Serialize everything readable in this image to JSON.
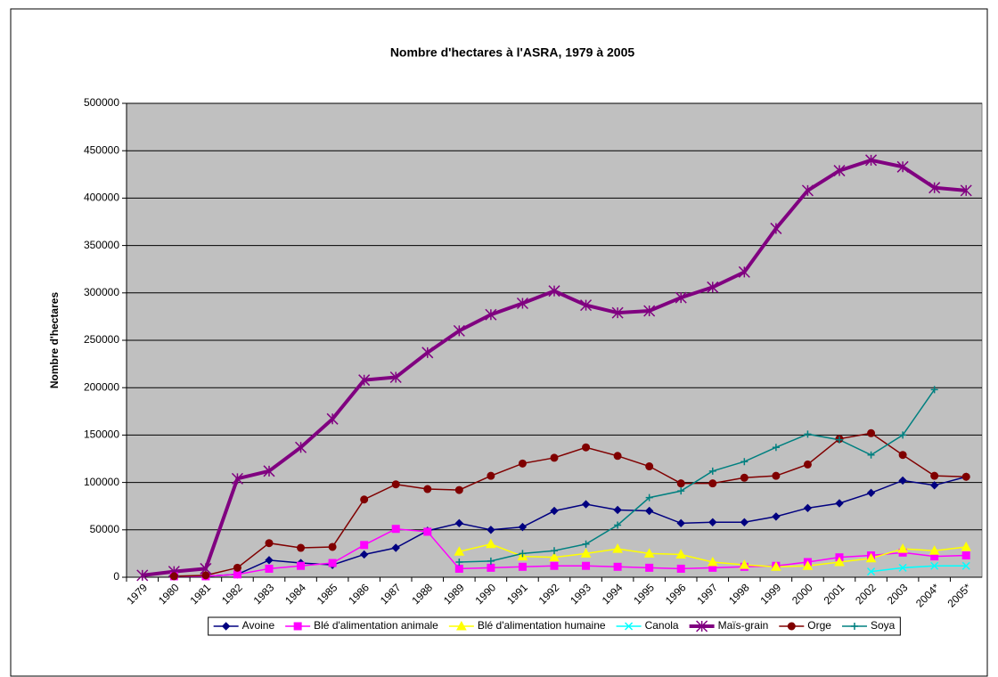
{
  "chart_data": {
    "type": "line",
    "title": "Nombre d'hectares à l'ASRA, 1979 à 2005",
    "ylabel": "Nombre d'hectares",
    "categories": [
      "1979",
      "1980",
      "1981",
      "1982",
      "1983",
      "1984",
      "1985",
      "1986",
      "1987",
      "1988",
      "1989",
      "1990",
      "1991",
      "1992",
      "1993",
      "1994",
      "1995",
      "1996",
      "1997",
      "1998",
      "1999",
      "2000",
      "2001",
      "2002",
      "2003",
      "2004*",
      "2005*"
    ],
    "ylim": [
      0,
      500000
    ],
    "yticks": [
      0,
      50000,
      100000,
      150000,
      200000,
      250000,
      300000,
      350000,
      400000,
      450000,
      500000
    ],
    "grid": true,
    "legend": "bottom",
    "series": [
      {
        "name": "Avoine",
        "color": "#000080",
        "marker": "diamond",
        "values": [
          null,
          1000,
          1000,
          3000,
          18000,
          15000,
          13000,
          24000,
          31000,
          49000,
          57000,
          50000,
          53000,
          70000,
          77000,
          71000,
          70000,
          57000,
          58000,
          58000,
          64000,
          73000,
          78000,
          89000,
          102000,
          97000,
          106000
        ]
      },
      {
        "name": "Blé d'alimentation animale",
        "color": "#ff00ff",
        "marker": "square",
        "values": [
          null,
          1000,
          1000,
          3000,
          9000,
          12000,
          15000,
          34000,
          51000,
          48000,
          9000,
          10000,
          11000,
          12000,
          12000,
          11000,
          10000,
          9000,
          10000,
          11000,
          12000,
          16000,
          21000,
          23000,
          26000,
          22000,
          23000
        ]
      },
      {
        "name": "Blé d'alimentation humaine",
        "color": "#ffff00",
        "marker": "triangle",
        "values": [
          null,
          null,
          null,
          null,
          null,
          null,
          null,
          null,
          null,
          null,
          27000,
          35000,
          22000,
          21000,
          25000,
          30000,
          25000,
          24000,
          16000,
          13000,
          11000,
          12000,
          16000,
          20000,
          30000,
          28000,
          32000
        ]
      },
      {
        "name": "Canola",
        "color": "#00ffff",
        "marker": "x",
        "values": [
          null,
          null,
          null,
          null,
          null,
          null,
          null,
          null,
          null,
          null,
          null,
          null,
          null,
          null,
          null,
          null,
          null,
          null,
          null,
          null,
          null,
          null,
          null,
          6000,
          10000,
          12000,
          12000
        ]
      },
      {
        "name": "Maïs-grain",
        "color": "#800080",
        "marker": "star",
        "width": 4,
        "values": [
          2000,
          6000,
          9000,
          104000,
          112000,
          137000,
          167000,
          208000,
          211000,
          237000,
          260000,
          277000,
          289000,
          302000,
          287000,
          279000,
          281000,
          295000,
          306000,
          322000,
          368000,
          408000,
          429000,
          440000,
          433000,
          411000,
          408000
        ]
      },
      {
        "name": "Orge",
        "color": "#800000",
        "marker": "circle",
        "values": [
          null,
          1000,
          2000,
          10000,
          36000,
          31000,
          32000,
          82000,
          98000,
          93000,
          92000,
          107000,
          120000,
          126000,
          137000,
          128000,
          117000,
          99000,
          99000,
          105000,
          107000,
          119000,
          146000,
          152000,
          129000,
          107000,
          106000
        ]
      },
      {
        "name": "Soya",
        "color": "#008080",
        "marker": "plus",
        "values": [
          null,
          null,
          null,
          null,
          null,
          null,
          null,
          null,
          null,
          null,
          16000,
          17000,
          25000,
          28000,
          35000,
          55000,
          84000,
          91000,
          112000,
          122000,
          137000,
          151000,
          145000,
          129000,
          150000,
          198000,
          null
        ]
      }
    ]
  }
}
